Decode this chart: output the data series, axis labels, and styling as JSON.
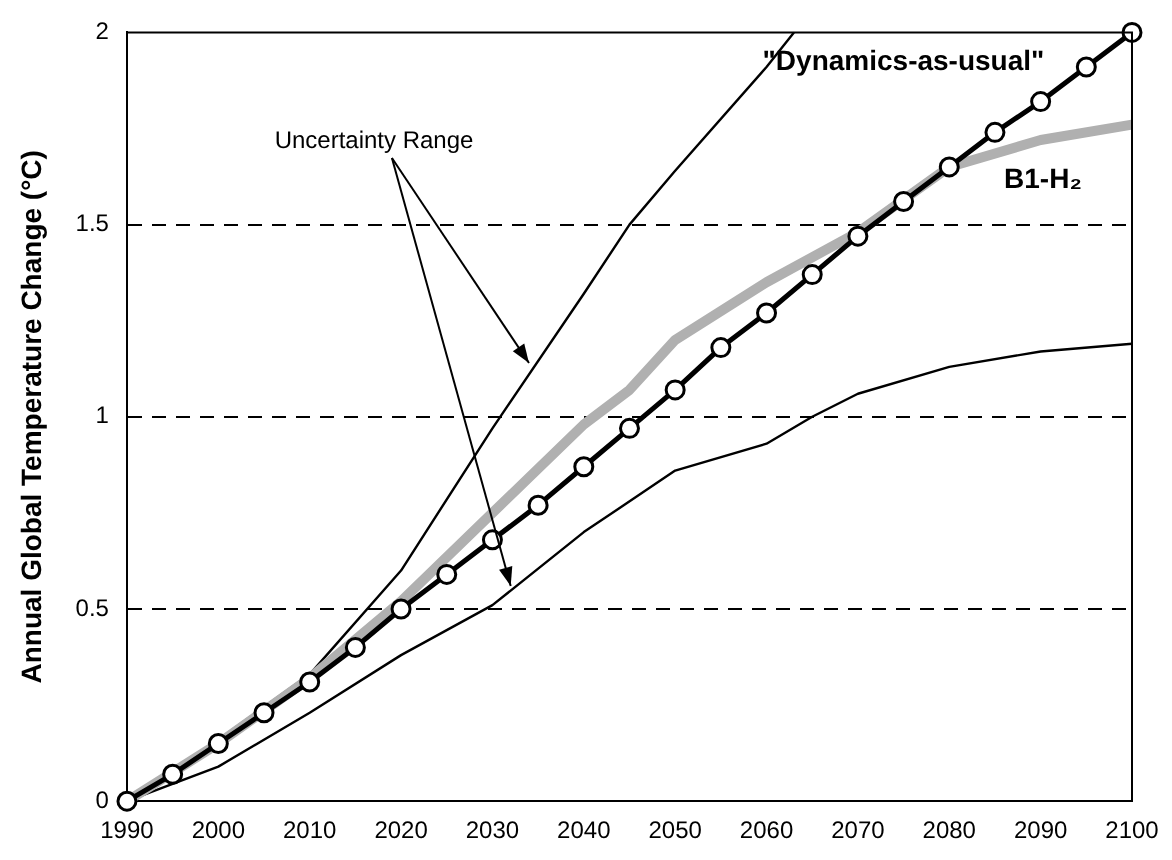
{
  "chart_data": {
    "type": "line",
    "ylabel": "Annual Global Temperature Change (°C)",
    "annotations": [
      {
        "text": "Uncertainty Range",
        "x": 2034,
        "y": 1.14
      }
    ],
    "xlim": [
      1990,
      2100
    ],
    "xticks": [
      1990,
      2000,
      2010,
      2020,
      2030,
      2040,
      2050,
      2060,
      2070,
      2080,
      2090,
      2100
    ],
    "ylim": [
      0,
      2
    ],
    "yticks": [
      0,
      0.5,
      1,
      1.5,
      2
    ],
    "grid": "y",
    "legend": false,
    "series": [
      {
        "name": "\"Dynamics-as-usual\"",
        "color": "#000000",
        "marker": "circle",
        "x": [
          1990,
          1995,
          2000,
          2005,
          2010,
          2015,
          2020,
          2025,
          2030,
          2035,
          2040,
          2045,
          2050,
          2055,
          2060,
          2065,
          2070,
          2075,
          2080,
          2085,
          2090,
          2095,
          2100
        ],
        "values": [
          0,
          0.07,
          0.15,
          0.23,
          0.31,
          0.4,
          0.5,
          0.59,
          0.68,
          0.77,
          0.87,
          0.97,
          1.07,
          1.18,
          1.27,
          1.37,
          1.47,
          1.56,
          1.65,
          1.74,
          1.82,
          1.91,
          2.0
        ]
      },
      {
        "name": "B1-H₂",
        "color": "#b0b0b0",
        "marker": "none",
        "x": [
          1990,
          2000,
          2010,
          2020,
          2030,
          2040,
          2045,
          2050,
          2060,
          2070,
          2080,
          2090,
          2100
        ],
        "values": [
          0,
          0.15,
          0.32,
          0.52,
          0.75,
          0.98,
          1.07,
          1.2,
          1.35,
          1.48,
          1.65,
          1.72,
          1.76
        ]
      },
      {
        "color": "#000000",
        "marker": "none",
        "x": [
          1990,
          2000,
          2010,
          2020,
          2030,
          2040,
          2045,
          2050,
          2060,
          2063
        ],
        "values": [
          0,
          0.16,
          0.33,
          0.6,
          0.97,
          1.32,
          1.5,
          1.64,
          1.91,
          2.0
        ]
      },
      {
        "color": "#000000",
        "marker": "none",
        "x": [
          1990,
          2000,
          2010,
          2020,
          2030,
          2040,
          2050,
          2060,
          2065,
          2070,
          2080,
          2090,
          2100
        ],
        "values": [
          0,
          0.09,
          0.23,
          0.38,
          0.51,
          0.7,
          0.86,
          0.93,
          1.0,
          1.06,
          1.13,
          1.17,
          1.19
        ]
      }
    ]
  }
}
